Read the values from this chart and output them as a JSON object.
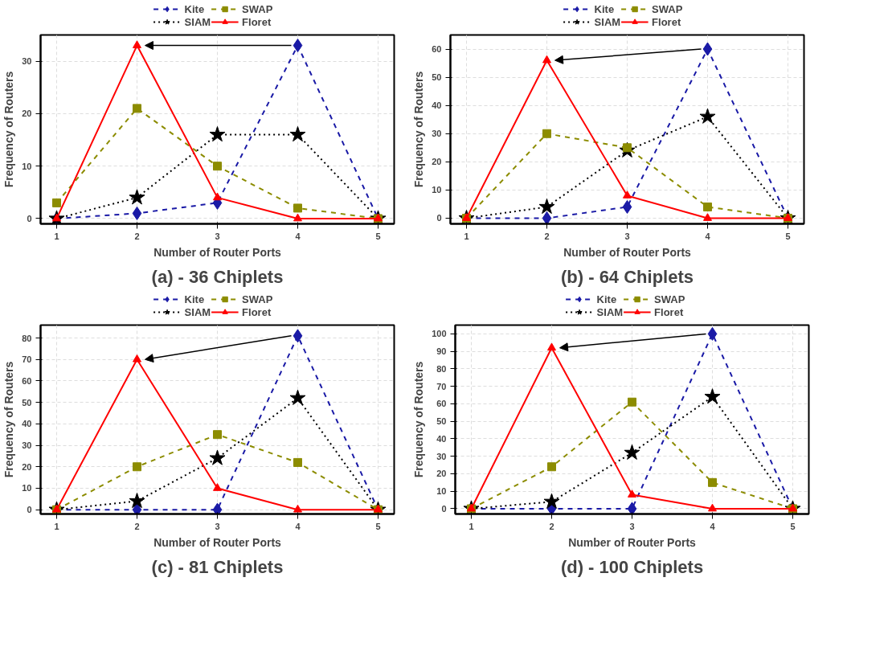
{
  "chart_data": [
    {
      "type": "line",
      "title": "(a) - 36 Chiplets",
      "xlabel": "Number of Router Ports",
      "ylabel": "Frequency of Routers",
      "x": [
        1,
        2,
        3,
        4,
        5
      ],
      "xlim": [
        0.8,
        5.2
      ],
      "xticks": [
        1,
        2,
        3,
        4,
        5
      ],
      "ylim": [
        -1,
        35
      ],
      "yticks": [
        0,
        10,
        20,
        30
      ],
      "grid": true,
      "legend": "top",
      "series": [
        {
          "name": "Kite",
          "color": "#1a1aa6",
          "values": [
            0,
            1,
            3,
            33,
            0
          ],
          "marker": "diamond",
          "line_style": "dashed"
        },
        {
          "name": "SIAM",
          "color": "#000000",
          "values": [
            0,
            4,
            16,
            16,
            0
          ],
          "marker": "star",
          "line_style": "dotted"
        },
        {
          "name": "SWAP",
          "color": "#8c8c00",
          "values": [
            3,
            21,
            10,
            2,
            0
          ],
          "marker": "square",
          "line_style": "dashed"
        },
        {
          "name": "Floret",
          "color": "#ff0000",
          "values": [
            0,
            33,
            4,
            0,
            0
          ],
          "marker": "triangle",
          "line_style": "solid"
        }
      ]
    },
    {
      "type": "line",
      "title": "(b) - 64 Chiplets",
      "xlabel": "Number of Router Ports",
      "ylabel": "Frequency of Routers",
      "x": [
        1,
        2,
        3,
        4,
        5
      ],
      "xlim": [
        0.8,
        5.2
      ],
      "xticks": [
        1,
        2,
        3,
        4,
        5
      ],
      "ylim": [
        -2,
        65
      ],
      "yticks": [
        0,
        10,
        20,
        30,
        40,
        50,
        60
      ],
      "grid": true,
      "legend": "top",
      "series": [
        {
          "name": "Kite",
          "color": "#1a1aa6",
          "values": [
            0,
            0,
            4,
            60,
            0
          ],
          "marker": "diamond",
          "line_style": "dashed"
        },
        {
          "name": "SIAM",
          "color": "#000000",
          "values": [
            0,
            4,
            24,
            36,
            0
          ],
          "marker": "star",
          "line_style": "dotted"
        },
        {
          "name": "SWAP",
          "color": "#8c8c00",
          "values": [
            0,
            30,
            25,
            4,
            0
          ],
          "marker": "square",
          "line_style": "dashed"
        },
        {
          "name": "Floret",
          "color": "#ff0000",
          "values": [
            0,
            56,
            8,
            0,
            0
          ],
          "marker": "triangle",
          "line_style": "solid"
        }
      ]
    },
    {
      "type": "line",
      "title": "(c) - 81 Chiplets",
      "xlabel": "Number of Router Ports",
      "ylabel": "Frequency of Routers",
      "x": [
        1,
        2,
        3,
        4,
        5
      ],
      "xlim": [
        0.8,
        5.2
      ],
      "xticks": [
        1,
        2,
        3,
        4,
        5
      ],
      "ylim": [
        -2,
        86
      ],
      "yticks": [
        0,
        10,
        20,
        30,
        40,
        50,
        60,
        70,
        80
      ],
      "grid": true,
      "legend": "top",
      "series": [
        {
          "name": "Kite",
          "color": "#1a1aa6",
          "values": [
            0,
            0,
            0,
            81,
            0
          ],
          "marker": "diamond",
          "line_style": "dashed"
        },
        {
          "name": "SIAM",
          "color": "#000000",
          "values": [
            0,
            4,
            24,
            52,
            0
          ],
          "marker": "star",
          "line_style": "dotted"
        },
        {
          "name": "SWAP",
          "color": "#8c8c00",
          "values": [
            0,
            20,
            35,
            22,
            0
          ],
          "marker": "square",
          "line_style": "dashed"
        },
        {
          "name": "Floret",
          "color": "#ff0000",
          "values": [
            0,
            70,
            10,
            0,
            0
          ],
          "marker": "triangle",
          "line_style": "solid"
        }
      ]
    },
    {
      "type": "line",
      "title": "(d) - 100 Chiplets",
      "xlabel": "Number of Router Ports",
      "ylabel": "Frequency of Routers",
      "x": [
        1,
        2,
        3,
        4,
        5
      ],
      "xlim": [
        0.8,
        5.2
      ],
      "xticks": [
        1,
        2,
        3,
        4,
        5
      ],
      "ylim": [
        -3,
        105
      ],
      "yticks": [
        0,
        10,
        20,
        30,
        40,
        50,
        60,
        70,
        80,
        90,
        100
      ],
      "grid": true,
      "legend": "top",
      "series": [
        {
          "name": "Kite",
          "color": "#1a1aa6",
          "values": [
            0,
            0,
            0,
            100,
            0
          ],
          "marker": "diamond",
          "line_style": "dashed"
        },
        {
          "name": "SIAM",
          "color": "#000000",
          "values": [
            0,
            4,
            32,
            64,
            0
          ],
          "marker": "star",
          "line_style": "dotted"
        },
        {
          "name": "SWAP",
          "color": "#8c8c00",
          "values": [
            0,
            24,
            61,
            15,
            0
          ],
          "marker": "square",
          "line_style": "dashed"
        },
        {
          "name": "Floret",
          "color": "#ff0000",
          "values": [
            0,
            92,
            8,
            0,
            0
          ],
          "marker": "triangle",
          "line_style": "solid"
        }
      ]
    }
  ]
}
